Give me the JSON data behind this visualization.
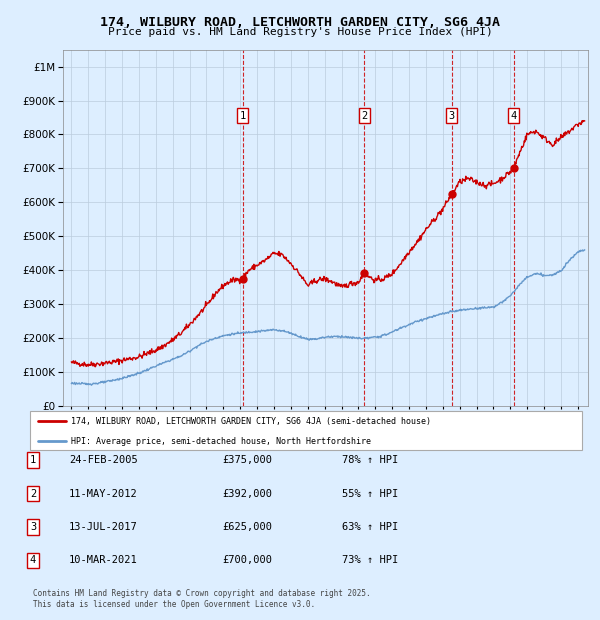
{
  "title1": "174, WILBURY ROAD, LETCHWORTH GARDEN CITY, SG6 4JA",
  "title2": "Price paid vs. HM Land Registry's House Price Index (HPI)",
  "legend1": "174, WILBURY ROAD, LETCHWORTH GARDEN CITY, SG6 4JA (semi-detached house)",
  "legend2": "HPI: Average price, semi-detached house, North Hertfordshire",
  "footer": "Contains HM Land Registry data © Crown copyright and database right 2025.\nThis data is licensed under the Open Government Licence v3.0.",
  "transactions": [
    {
      "num": 1,
      "date": "24-FEB-2005",
      "price": 375000,
      "pct": "78%",
      "dir": "↑",
      "year": 2005.14
    },
    {
      "num": 2,
      "date": "11-MAY-2012",
      "price": 392000,
      "pct": "55%",
      "dir": "↑",
      "year": 2012.36
    },
    {
      "num": 3,
      "date": "13-JUL-2017",
      "price": 625000,
      "pct": "63%",
      "dir": "↑",
      "year": 2017.53
    },
    {
      "num": 4,
      "date": "10-MAR-2021",
      "price": 700000,
      "pct": "73%",
      "dir": "↑",
      "year": 2021.19
    }
  ],
  "red_color": "#cc0000",
  "blue_color": "#6699cc",
  "background_color": "#ddeeff",
  "plot_bg": "#ddeeff",
  "ylim": [
    0,
    1050000
  ],
  "xlim_start": 1994.5,
  "xlim_end": 2025.6,
  "red_anchors": [
    [
      1995.0,
      128000
    ],
    [
      1995.5,
      125000
    ],
    [
      1996.0,
      122000
    ],
    [
      1996.5,
      124000
    ],
    [
      1997.0,
      127000
    ],
    [
      1997.5,
      130000
    ],
    [
      1998.0,
      135000
    ],
    [
      1998.5,
      140000
    ],
    [
      1999.0,
      145000
    ],
    [
      1999.5,
      155000
    ],
    [
      2000.0,
      165000
    ],
    [
      2000.5,
      178000
    ],
    [
      2001.0,
      195000
    ],
    [
      2001.5,
      215000
    ],
    [
      2002.0,
      240000
    ],
    [
      2002.5,
      268000
    ],
    [
      2003.0,
      295000
    ],
    [
      2003.5,
      330000
    ],
    [
      2004.0,
      355000
    ],
    [
      2004.5,
      370000
    ],
    [
      2005.14,
      375000
    ],
    [
      2005.5,
      400000
    ],
    [
      2006.0,
      415000
    ],
    [
      2006.5,
      430000
    ],
    [
      2007.0,
      450000
    ],
    [
      2007.5,
      445000
    ],
    [
      2008.0,
      420000
    ],
    [
      2008.5,
      390000
    ],
    [
      2009.0,
      355000
    ],
    [
      2009.5,
      370000
    ],
    [
      2010.0,
      375000
    ],
    [
      2010.5,
      365000
    ],
    [
      2011.0,
      350000
    ],
    [
      2011.5,
      360000
    ],
    [
      2012.0,
      365000
    ],
    [
      2012.36,
      392000
    ],
    [
      2012.5,
      385000
    ],
    [
      2013.0,
      370000
    ],
    [
      2013.5,
      375000
    ],
    [
      2014.0,
      390000
    ],
    [
      2014.5,
      420000
    ],
    [
      2015.0,
      455000
    ],
    [
      2015.5,
      485000
    ],
    [
      2016.0,
      520000
    ],
    [
      2016.5,
      550000
    ],
    [
      2017.0,
      580000
    ],
    [
      2017.53,
      625000
    ],
    [
      2018.0,
      660000
    ],
    [
      2018.5,
      670000
    ],
    [
      2019.0,
      660000
    ],
    [
      2019.5,
      650000
    ],
    [
      2020.0,
      655000
    ],
    [
      2020.5,
      670000
    ],
    [
      2021.0,
      690000
    ],
    [
      2021.19,
      700000
    ],
    [
      2021.5,
      740000
    ],
    [
      2022.0,
      800000
    ],
    [
      2022.5,
      810000
    ],
    [
      2023.0,
      790000
    ],
    [
      2023.5,
      770000
    ],
    [
      2024.0,
      790000
    ],
    [
      2024.5,
      810000
    ],
    [
      2025.0,
      830000
    ],
    [
      2025.4,
      840000
    ]
  ],
  "blue_anchors": [
    [
      1995.0,
      68000
    ],
    [
      1995.5,
      66000
    ],
    [
      1996.0,
      65000
    ],
    [
      1996.5,
      67000
    ],
    [
      1997.0,
      71000
    ],
    [
      1997.5,
      76000
    ],
    [
      1998.0,
      82000
    ],
    [
      1998.5,
      89000
    ],
    [
      1999.0,
      97000
    ],
    [
      1999.5,
      107000
    ],
    [
      2000.0,
      118000
    ],
    [
      2000.5,
      128000
    ],
    [
      2001.0,
      138000
    ],
    [
      2001.5,
      148000
    ],
    [
      2002.0,
      162000
    ],
    [
      2002.5,
      178000
    ],
    [
      2003.0,
      190000
    ],
    [
      2003.5,
      200000
    ],
    [
      2004.0,
      207000
    ],
    [
      2004.5,
      212000
    ],
    [
      2005.0,
      215000
    ],
    [
      2005.5,
      218000
    ],
    [
      2006.0,
      220000
    ],
    [
      2006.5,
      222000
    ],
    [
      2007.0,
      225000
    ],
    [
      2007.5,
      222000
    ],
    [
      2008.0,
      215000
    ],
    [
      2008.5,
      205000
    ],
    [
      2009.0,
      197000
    ],
    [
      2009.5,
      198000
    ],
    [
      2010.0,
      203000
    ],
    [
      2010.5,
      205000
    ],
    [
      2011.0,
      205000
    ],
    [
      2011.5,
      202000
    ],
    [
      2012.0,
      200000
    ],
    [
      2012.5,
      200000
    ],
    [
      2013.0,
      203000
    ],
    [
      2013.5,
      208000
    ],
    [
      2014.0,
      218000
    ],
    [
      2014.5,
      230000
    ],
    [
      2015.0,
      240000
    ],
    [
      2015.5,
      250000
    ],
    [
      2016.0,
      258000
    ],
    [
      2016.5,
      265000
    ],
    [
      2017.0,
      272000
    ],
    [
      2017.5,
      278000
    ],
    [
      2018.0,
      282000
    ],
    [
      2018.5,
      285000
    ],
    [
      2019.0,
      288000
    ],
    [
      2019.5,
      290000
    ],
    [
      2020.0,
      292000
    ],
    [
      2020.5,
      305000
    ],
    [
      2021.0,
      325000
    ],
    [
      2021.5,
      355000
    ],
    [
      2022.0,
      380000
    ],
    [
      2022.5,
      390000
    ],
    [
      2023.0,
      385000
    ],
    [
      2023.5,
      385000
    ],
    [
      2024.0,
      400000
    ],
    [
      2024.5,
      430000
    ],
    [
      2025.0,
      455000
    ],
    [
      2025.4,
      460000
    ]
  ]
}
